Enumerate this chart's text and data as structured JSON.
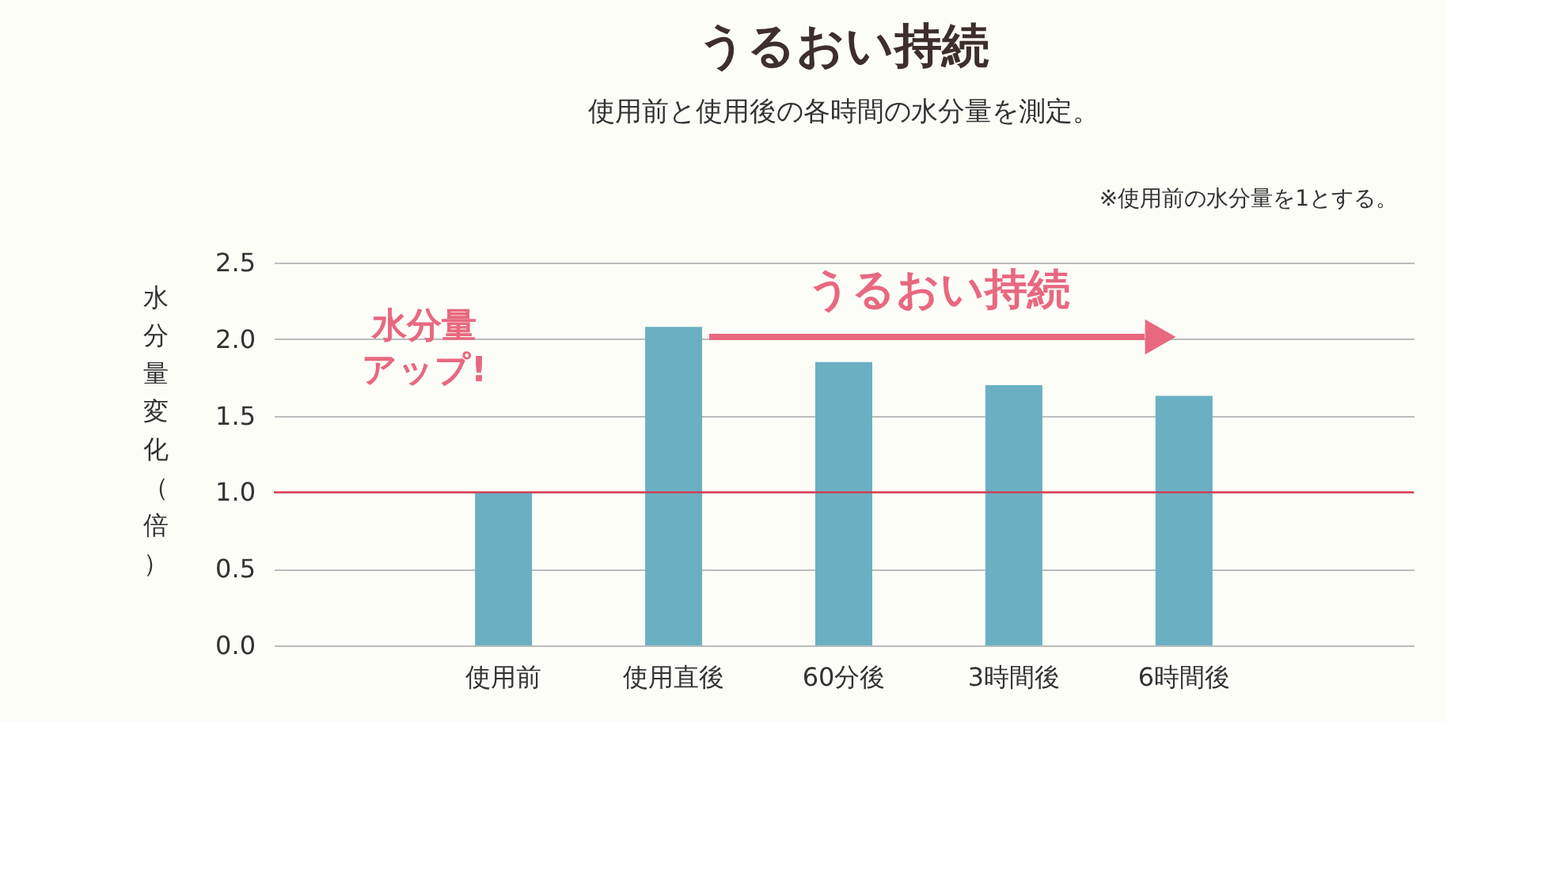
{
  "chart_data": {
    "type": "bar",
    "title": "うるおい持続",
    "subtitle": "使用前と使用後の各時間の水分量を測定。",
    "ylabel": "水分量変化（倍）",
    "categories": [
      "使用前",
      "使用直後",
      "60分後",
      "3時間後",
      "6時間後"
    ],
    "values": [
      1.0,
      2.08,
      1.85,
      1.7,
      1.63
    ],
    "color": "#6ab0c2",
    "ylim": [
      0,
      2.5
    ],
    "yticks": [
      {
        "value": 0,
        "label": "0.0"
      },
      0.5,
      {
        "value": 1,
        "label": "1.0"
      },
      1.5,
      {
        "value": 2,
        "label": "2.0"
      },
      2.5
    ],
    "grid": "y",
    "ref_lines": [
      {
        "axis": "y",
        "value": 1.0,
        "color": "#d9334a"
      }
    ],
    "annotations": [
      "※使用前の水分量を1とする。",
      "水分量アップ!",
      "うるおい持続"
    ]
  }
}
